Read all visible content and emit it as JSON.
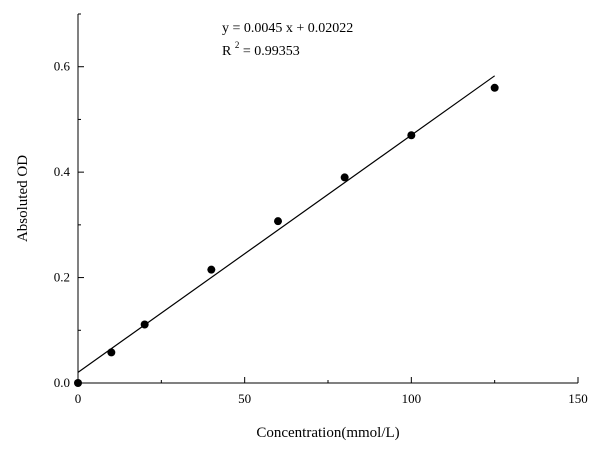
{
  "chart_data": {
    "type": "scatter",
    "xlabel": "Concentration(mmol/L)",
    "ylabel": "Absoluted OD",
    "xlim": [
      0,
      150
    ],
    "ylim": [
      0,
      0.7
    ],
    "x_ticks": [
      0,
      50,
      100,
      150
    ],
    "y_ticks": [
      0.0,
      0.2,
      0.4,
      0.6
    ],
    "x_tick_labels": [
      "0",
      "50",
      "100",
      "150"
    ],
    "y_tick_labels": [
      "0.0",
      "0.2",
      "0.4",
      "0.6"
    ],
    "grid": false,
    "points": [
      {
        "x": 0,
        "y": 0.0
      },
      {
        "x": 10,
        "y": 0.058
      },
      {
        "x": 20,
        "y": 0.111
      },
      {
        "x": 40,
        "y": 0.215
      },
      {
        "x": 60,
        "y": 0.307
      },
      {
        "x": 80,
        "y": 0.39
      },
      {
        "x": 100,
        "y": 0.47
      },
      {
        "x": 125,
        "y": 0.56
      }
    ],
    "fit_line": {
      "slope": 0.0045,
      "intercept": 0.02022,
      "x_range": [
        0,
        125
      ]
    },
    "annotations": {
      "equation": "y = 0.0045 x + 0.02022",
      "r_squared_prefix": "R",
      "r_squared_exponent": "2",
      "r_squared_value": " = 0.99353"
    }
  }
}
